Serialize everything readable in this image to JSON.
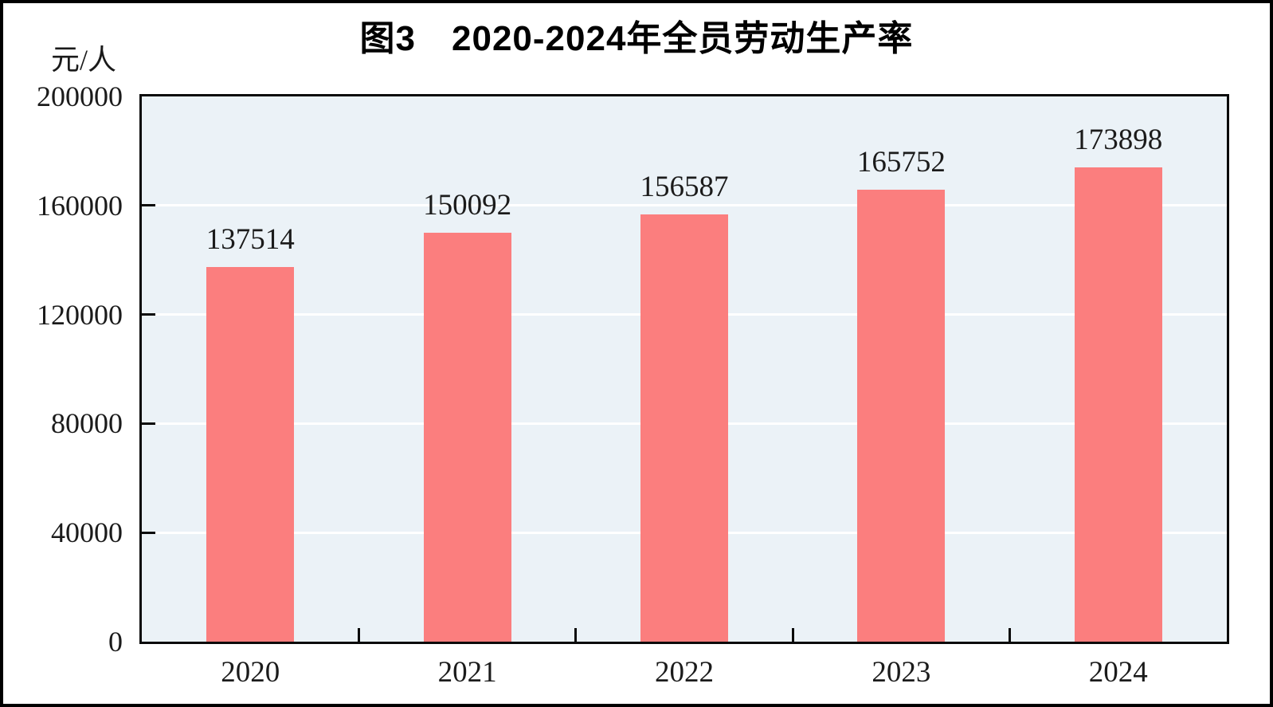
{
  "chart_data": {
    "type": "bar",
    "title": "图3　2020-2024年全员劳动生产率",
    "unit_label": "元/人",
    "categories": [
      "2020",
      "2021",
      "2022",
      "2023",
      "2024"
    ],
    "values": [
      137514,
      150092,
      156587,
      165752,
      173898
    ],
    "value_labels": [
      "137514",
      "150092",
      "156587",
      "165752",
      "173898"
    ],
    "ylim": [
      0,
      200000
    ],
    "yticks": [
      0,
      40000,
      80000,
      120000,
      160000,
      200000
    ],
    "ytick_labels": [
      "0",
      "40000",
      "80000",
      "120000",
      "160000",
      "200000"
    ],
    "grid": true,
    "legend": "none",
    "colors": {
      "bar": "#fb7e7e",
      "plot_background": "#ebf2f7",
      "gridline": "#ffffff",
      "axis": "#0a0a0a",
      "text": "#1b1b1b"
    }
  }
}
